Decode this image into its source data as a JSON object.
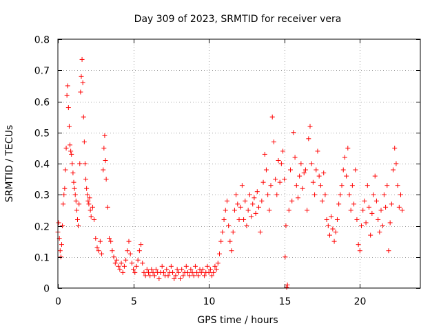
{
  "chart_data": {
    "type": "scatter",
    "title": "Day 309 of 2023, SRMTID for receiver vera",
    "xlabel": "GPS time / hours",
    "ylabel": "SRMTID / TECUs",
    "xlim": [
      0,
      24
    ],
    "ylim": [
      0,
      0.8
    ],
    "xticks": [
      0,
      5,
      10,
      15,
      20
    ],
    "yticks": [
      0,
      0.1,
      0.2,
      0.3,
      0.4,
      0.5,
      0.6,
      0.7,
      0.8
    ],
    "xtick_labels": [
      "0",
      "5",
      "10",
      "15",
      "20"
    ],
    "ytick_labels": [
      "0",
      "0.1",
      "0.2",
      "0.3",
      "0.4",
      "0.5",
      "0.6",
      "0.7",
      "0.8"
    ],
    "grid": true,
    "marker": "+",
    "color": "#ff0000",
    "series": [
      {
        "name": "SRMTID",
        "points": [
          [
            0.0,
            0.18
          ],
          [
            0.05,
            0.21
          ],
          [
            0.1,
            0.16
          ],
          [
            0.15,
            0.12
          ],
          [
            0.2,
            0.1
          ],
          [
            0.25,
            0.14
          ],
          [
            0.3,
            0.2
          ],
          [
            0.35,
            0.27
          ],
          [
            0.4,
            0.3
          ],
          [
            0.45,
            0.32
          ],
          [
            0.5,
            0.38
          ],
          [
            0.55,
            0.45
          ],
          [
            0.6,
            0.62
          ],
          [
            0.65,
            0.65
          ],
          [
            0.7,
            0.58
          ],
          [
            0.75,
            0.52
          ],
          [
            0.8,
            0.46
          ],
          [
            0.85,
            0.44
          ],
          [
            0.9,
            0.43
          ],
          [
            0.95,
            0.4
          ],
          [
            1.0,
            0.37
          ],
          [
            1.05,
            0.34
          ],
          [
            1.1,
            0.32
          ],
          [
            1.15,
            0.3
          ],
          [
            1.2,
            0.28
          ],
          [
            1.25,
            0.25
          ],
          [
            1.3,
            0.22
          ],
          [
            1.35,
            0.2
          ],
          [
            1.4,
            0.27
          ],
          [
            1.45,
            0.4
          ],
          [
            1.5,
            0.63
          ],
          [
            1.55,
            0.68
          ],
          [
            1.6,
            0.735
          ],
          [
            1.65,
            0.66
          ],
          [
            1.7,
            0.55
          ],
          [
            1.75,
            0.47
          ],
          [
            1.8,
            0.4
          ],
          [
            1.85,
            0.35
          ],
          [
            1.9,
            0.32
          ],
          [
            1.95,
            0.3
          ],
          [
            2.0,
            0.28
          ],
          [
            2.05,
            0.27
          ],
          [
            2.1,
            0.29
          ],
          [
            2.15,
            0.25
          ],
          [
            2.2,
            0.23
          ],
          [
            2.3,
            0.26
          ],
          [
            2.4,
            0.22
          ],
          [
            2.5,
            0.16
          ],
          [
            2.6,
            0.13
          ],
          [
            2.7,
            0.12
          ],
          [
            2.8,
            0.15
          ],
          [
            2.9,
            0.11
          ],
          [
            3.0,
            0.38
          ],
          [
            3.05,
            0.45
          ],
          [
            3.1,
            0.49
          ],
          [
            3.15,
            0.41
          ],
          [
            3.2,
            0.35
          ],
          [
            3.3,
            0.26
          ],
          [
            3.4,
            0.16
          ],
          [
            3.5,
            0.15
          ],
          [
            3.6,
            0.12
          ],
          [
            3.7,
            0.1
          ],
          [
            3.8,
            0.08
          ],
          [
            3.9,
            0.09
          ],
          [
            4.0,
            0.07
          ],
          [
            4.1,
            0.06
          ],
          [
            4.2,
            0.08
          ],
          [
            4.3,
            0.05
          ],
          [
            4.4,
            0.07
          ],
          [
            4.5,
            0.09
          ],
          [
            4.6,
            0.12
          ],
          [
            4.7,
            0.15
          ],
          [
            4.8,
            0.11
          ],
          [
            4.9,
            0.08
          ],
          [
            5.0,
            0.06
          ],
          [
            5.1,
            0.05
          ],
          [
            5.2,
            0.07
          ],
          [
            5.3,
            0.09
          ],
          [
            5.4,
            0.12
          ],
          [
            5.5,
            0.14
          ],
          [
            5.6,
            0.08
          ],
          [
            5.7,
            0.05
          ],
          [
            5.8,
            0.04
          ],
          [
            5.9,
            0.06
          ],
          [
            6.0,
            0.05
          ],
          [
            6.1,
            0.04
          ],
          [
            6.2,
            0.06
          ],
          [
            6.3,
            0.05
          ],
          [
            6.4,
            0.04
          ],
          [
            6.5,
            0.06
          ],
          [
            6.6,
            0.05
          ],
          [
            6.7,
            0.03
          ],
          [
            6.8,
            0.05
          ],
          [
            6.9,
            0.07
          ],
          [
            7.0,
            0.05
          ],
          [
            7.1,
            0.04
          ],
          [
            7.2,
            0.06
          ],
          [
            7.3,
            0.04
          ],
          [
            7.4,
            0.05
          ],
          [
            7.5,
            0.07
          ],
          [
            7.6,
            0.05
          ],
          [
            7.7,
            0.03
          ],
          [
            7.8,
            0.04
          ],
          [
            7.9,
            0.06
          ],
          [
            8.0,
            0.05
          ],
          [
            8.1,
            0.03
          ],
          [
            8.2,
            0.06
          ],
          [
            8.3,
            0.04
          ],
          [
            8.4,
            0.05
          ],
          [
            8.5,
            0.07
          ],
          [
            8.6,
            0.05
          ],
          [
            8.7,
            0.04
          ],
          [
            8.8,
            0.06
          ],
          [
            8.9,
            0.05
          ],
          [
            9.0,
            0.04
          ],
          [
            9.1,
            0.07
          ],
          [
            9.2,
            0.05
          ],
          [
            9.3,
            0.04
          ],
          [
            9.4,
            0.06
          ],
          [
            9.5,
            0.05
          ],
          [
            9.6,
            0.06
          ],
          [
            9.7,
            0.04
          ],
          [
            9.8,
            0.05
          ],
          [
            9.9,
            0.07
          ],
          [
            10.0,
            0.05
          ],
          [
            10.1,
            0.06
          ],
          [
            10.2,
            0.04
          ],
          [
            10.3,
            0.05
          ],
          [
            10.4,
            0.07
          ],
          [
            10.5,
            0.06
          ],
          [
            10.6,
            0.08
          ],
          [
            10.7,
            0.11
          ],
          [
            10.8,
            0.15
          ],
          [
            10.9,
            0.18
          ],
          [
            11.0,
            0.22
          ],
          [
            11.1,
            0.25
          ],
          [
            11.2,
            0.28
          ],
          [
            11.3,
            0.2
          ],
          [
            11.4,
            0.15
          ],
          [
            11.5,
            0.12
          ],
          [
            11.6,
            0.18
          ],
          [
            11.7,
            0.25
          ],
          [
            11.8,
            0.3
          ],
          [
            11.9,
            0.27
          ],
          [
            12.0,
            0.22
          ],
          [
            12.1,
            0.26
          ],
          [
            12.2,
            0.33
          ],
          [
            12.3,
            0.22
          ],
          [
            12.4,
            0.28
          ],
          [
            12.5,
            0.2
          ],
          [
            12.6,
            0.25
          ],
          [
            12.7,
            0.3
          ],
          [
            12.8,
            0.23
          ],
          [
            12.9,
            0.27
          ],
          [
            13.0,
            0.29
          ],
          [
            13.1,
            0.24
          ],
          [
            13.2,
            0.31
          ],
          [
            13.3,
            0.26
          ],
          [
            13.4,
            0.18
          ],
          [
            13.5,
            0.28
          ],
          [
            13.6,
            0.34
          ],
          [
            13.7,
            0.43
          ],
          [
            13.8,
            0.38
          ],
          [
            13.9,
            0.3
          ],
          [
            14.0,
            0.25
          ],
          [
            14.1,
            0.33
          ],
          [
            14.2,
            0.55
          ],
          [
            14.3,
            0.47
          ],
          [
            14.4,
            0.35
          ],
          [
            14.5,
            0.3
          ],
          [
            14.6,
            0.41
          ],
          [
            14.7,
            0.34
          ],
          [
            14.8,
            0.4
          ],
          [
            14.9,
            0.44
          ],
          [
            15.0,
            0.35
          ],
          [
            15.05,
            0.1
          ],
          [
            15.1,
            0.2
          ],
          [
            15.15,
            0.002
          ],
          [
            15.2,
            0.01
          ],
          [
            15.3,
            0.25
          ],
          [
            15.4,
            0.38
          ],
          [
            15.5,
            0.28
          ],
          [
            15.6,
            0.5
          ],
          [
            15.7,
            0.42
          ],
          [
            15.8,
            0.33
          ],
          [
            15.9,
            0.29
          ],
          [
            16.0,
            0.36
          ],
          [
            16.1,
            0.4
          ],
          [
            16.2,
            0.32
          ],
          [
            16.3,
            0.37
          ],
          [
            16.4,
            0.38
          ],
          [
            16.5,
            0.25
          ],
          [
            16.6,
            0.48
          ],
          [
            16.7,
            0.52
          ],
          [
            16.8,
            0.4
          ],
          [
            16.9,
            0.34
          ],
          [
            17.0,
            0.3
          ],
          [
            17.1,
            0.38
          ],
          [
            17.2,
            0.44
          ],
          [
            17.3,
            0.36
          ],
          [
            17.4,
            0.33
          ],
          [
            17.5,
            0.28
          ],
          [
            17.6,
            0.37
          ],
          [
            17.7,
            0.3
          ],
          [
            17.8,
            0.22
          ],
          [
            17.9,
            0.2
          ],
          [
            18.0,
            0.17
          ],
          [
            18.1,
            0.23
          ],
          [
            18.2,
            0.19
          ],
          [
            18.3,
            0.15
          ],
          [
            18.4,
            0.18
          ],
          [
            18.5,
            0.22
          ],
          [
            18.6,
            0.27
          ],
          [
            18.7,
            0.3
          ],
          [
            18.8,
            0.33
          ],
          [
            18.9,
            0.38
          ],
          [
            19.0,
            0.42
          ],
          [
            19.1,
            0.36
          ],
          [
            19.2,
            0.45
          ],
          [
            19.3,
            0.3
          ],
          [
            19.4,
            0.25
          ],
          [
            19.5,
            0.33
          ],
          [
            19.6,
            0.27
          ],
          [
            19.7,
            0.38
          ],
          [
            19.8,
            0.22
          ],
          [
            19.9,
            0.14
          ],
          [
            20.0,
            0.12
          ],
          [
            20.1,
            0.2
          ],
          [
            20.2,
            0.25
          ],
          [
            20.3,
            0.28
          ],
          [
            20.4,
            0.21
          ],
          [
            20.5,
            0.33
          ],
          [
            20.6,
            0.26
          ],
          [
            20.7,
            0.17
          ],
          [
            20.8,
            0.24
          ],
          [
            20.9,
            0.3
          ],
          [
            21.0,
            0.36
          ],
          [
            21.1,
            0.28
          ],
          [
            21.2,
            0.22
          ],
          [
            21.3,
            0.18
          ],
          [
            21.4,
            0.25
          ],
          [
            21.5,
            0.2
          ],
          [
            21.6,
            0.3
          ],
          [
            21.7,
            0.26
          ],
          [
            21.8,
            0.33
          ],
          [
            21.9,
            0.12
          ],
          [
            22.0,
            0.21
          ],
          [
            22.1,
            0.27
          ],
          [
            22.2,
            0.38
          ],
          [
            22.3,
            0.45
          ],
          [
            22.4,
            0.4
          ],
          [
            22.5,
            0.33
          ],
          [
            22.6,
            0.26
          ],
          [
            22.7,
            0.3
          ],
          [
            22.8,
            0.25
          ]
        ]
      }
    ]
  }
}
